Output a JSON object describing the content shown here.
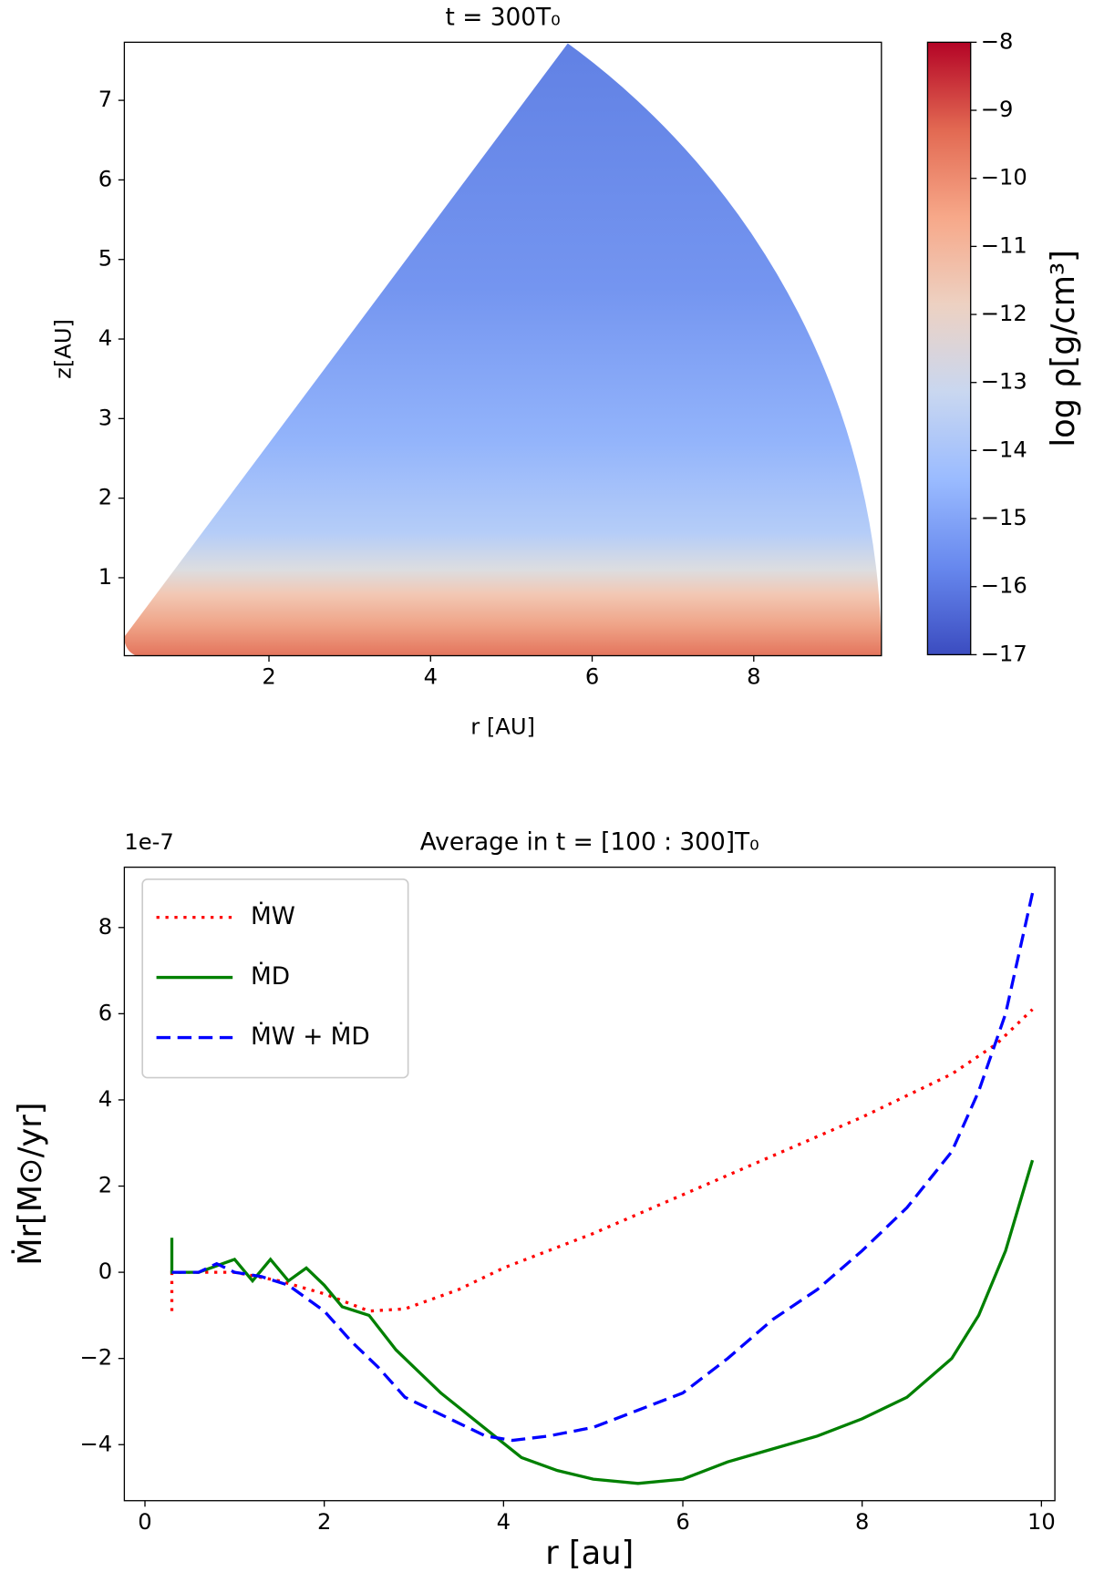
{
  "chart_data": [
    {
      "type": "density_map",
      "title": "t = 300T₀",
      "xlabel": "r [AU]",
      "ylabel": "z[AU]",
      "xlim": [
        0.21,
        9.58
      ],
      "ylim": [
        0.02,
        7.73
      ],
      "xticks": [
        2,
        4,
        6,
        8
      ],
      "yticks": [
        1,
        2,
        3,
        4,
        5,
        6,
        7
      ],
      "colorbar_label": "log ρ[g/cm³]",
      "clim": [
        -17,
        -8
      ],
      "colorbar_ticks": [
        {
          "value": -8,
          "label": "−8"
        },
        {
          "value": -9,
          "label": "−9"
        },
        {
          "value": -10,
          "label": "−10"
        },
        {
          "value": -11,
          "label": "−11"
        },
        {
          "value": -12,
          "label": "−12"
        },
        {
          "value": -13,
          "label": "−13"
        },
        {
          "value": -14,
          "label": "−14"
        },
        {
          "value": -15,
          "label": "−15"
        },
        {
          "value": -16,
          "label": "−16"
        },
        {
          "value": -17,
          "label": "−17"
        }
      ],
      "colormap": [
        "#3b4cc0",
        "#6788ee",
        "#9abbff",
        "#c9d7f0",
        "#edd1c2",
        "#f7a889",
        "#e26952",
        "#b40426"
      ]
    },
    {
      "type": "line",
      "title": "Average in t = [100 : 300]T₀",
      "xlabel": "r [au]",
      "ylabel": "Ṁr[M⊙/yr]",
      "offset_label": "1e-7",
      "xlim": [
        -0.23,
        10.15
      ],
      "ylim": [
        -5.3,
        9.4
      ],
      "xticks": [
        0,
        2,
        4,
        6,
        8,
        10
      ],
      "yticks": [
        {
          "value": -4,
          "label": "−4"
        },
        {
          "value": -2,
          "label": "−2"
        },
        0,
        2,
        4,
        6,
        8
      ],
      "legend": "upper left",
      "series": [
        {
          "name": "ṀW",
          "color": "#ff0000",
          "style": "dotted",
          "x": [
            0.3,
            0.3,
            0.5,
            1.0,
            1.5,
            2.0,
            2.5,
            2.9,
            3.5,
            4.0,
            5.0,
            6.0,
            7.0,
            8.0,
            9.0,
            9.5,
            9.9
          ],
          "values": [
            -0.9,
            0,
            0,
            0,
            -0.2,
            -0.5,
            -0.9,
            -0.85,
            -0.4,
            0.1,
            0.9,
            1.8,
            2.7,
            3.6,
            4.6,
            5.3,
            6.1
          ]
        },
        {
          "name": "ṀD",
          "color": "#008000",
          "style": "solid",
          "x": [
            0.3,
            0.3,
            0.6,
            1.0,
            1.2,
            1.4,
            1.6,
            1.8,
            2.0,
            2.2,
            2.5,
            2.8,
            3.0,
            3.3,
            3.6,
            3.9,
            4.2,
            4.6,
            5.0,
            5.5,
            6.0,
            6.5,
            7.0,
            7.5,
            8.0,
            8.5,
            9.0,
            9.3,
            9.6,
            9.9
          ],
          "values": [
            0.8,
            0,
            0,
            0.3,
            -0.2,
            0.3,
            -0.2,
            0.1,
            -0.3,
            -0.8,
            -1.0,
            -1.8,
            -2.2,
            -2.8,
            -3.3,
            -3.8,
            -4.3,
            -4.6,
            -4.8,
            -4.9,
            -4.8,
            -4.4,
            -4.1,
            -3.8,
            -3.4,
            -2.9,
            -2.0,
            -1.0,
            0.5,
            2.6
          ]
        },
        {
          "name": "ṀW + ṀD",
          "color": "#0000ff",
          "style": "dashed",
          "x": [
            0.3,
            0.6,
            0.8,
            1.0,
            1.3,
            1.6,
            2.0,
            2.3,
            2.6,
            2.9,
            3.2,
            3.5,
            3.8,
            4.1,
            4.5,
            5.0,
            5.5,
            6.0,
            6.5,
            7.0,
            7.5,
            8.0,
            8.5,
            9.0,
            9.3,
            9.6,
            9.9
          ],
          "values": [
            0,
            0,
            0.2,
            0,
            -0.1,
            -0.3,
            -0.9,
            -1.6,
            -2.2,
            -2.9,
            -3.2,
            -3.5,
            -3.8,
            -3.9,
            -3.8,
            -3.6,
            -3.2,
            -2.8,
            -2.0,
            -1.1,
            -0.4,
            0.5,
            1.5,
            2.8,
            4.2,
            6.0,
            8.8
          ]
        }
      ]
    }
  ]
}
